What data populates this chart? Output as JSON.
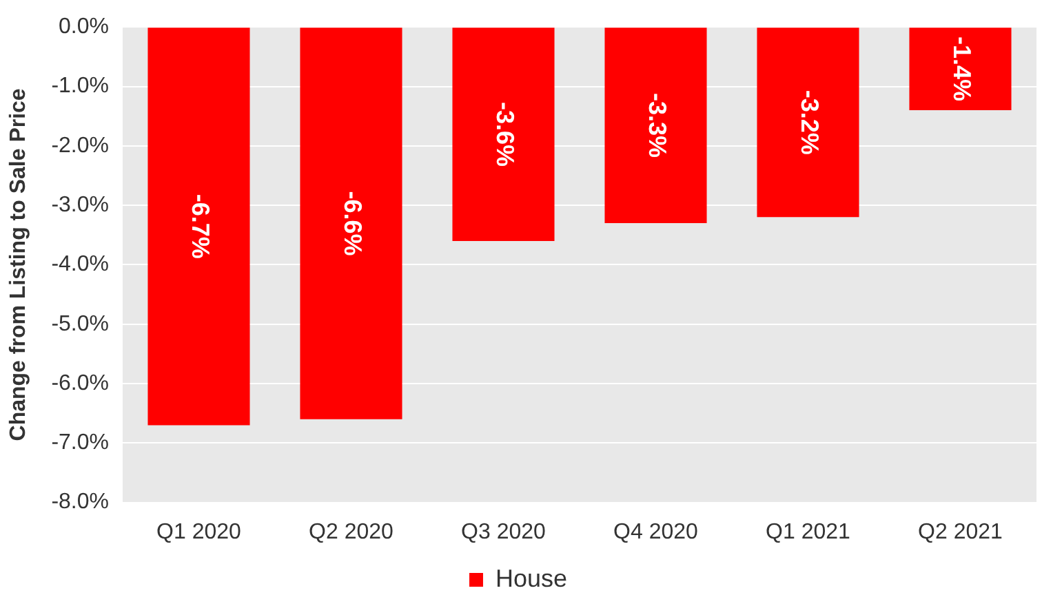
{
  "chart_data": {
    "type": "bar",
    "ylabel": "Change from Listing to Sale Price",
    "categories": [
      "Q1 2020",
      "Q2 2020",
      "Q3 2020",
      "Q4 2020",
      "Q1 2021",
      "Q2 2021"
    ],
    "series": [
      {
        "name": "House",
        "color": "#ff0000",
        "values": [
          -6.7,
          -6.6,
          -3.6,
          -3.3,
          -3.2,
          -1.4
        ],
        "value_labels": [
          "-6.7%",
          "-6.6%",
          "-3.6%",
          "-3.3%",
          "-3.2%",
          "-1.4%"
        ]
      }
    ],
    "ylim": [
      -8,
      0
    ],
    "yticks": [
      {
        "value": -8,
        "label": "-8.0%"
      },
      {
        "value": -7,
        "label": "-7.0%"
      },
      {
        "value": -6,
        "label": "-6.0%"
      },
      {
        "value": -5,
        "label": "-5.0%"
      },
      {
        "value": -4,
        "label": "-4.0%"
      },
      {
        "value": -3,
        "label": "-3.0%"
      },
      {
        "value": -2,
        "label": "-2.0%"
      },
      {
        "value": -1,
        "label": "-1.0%"
      },
      {
        "value": 0,
        "label": "0.0%"
      }
    ],
    "grid": "y",
    "legend": "bottom"
  }
}
